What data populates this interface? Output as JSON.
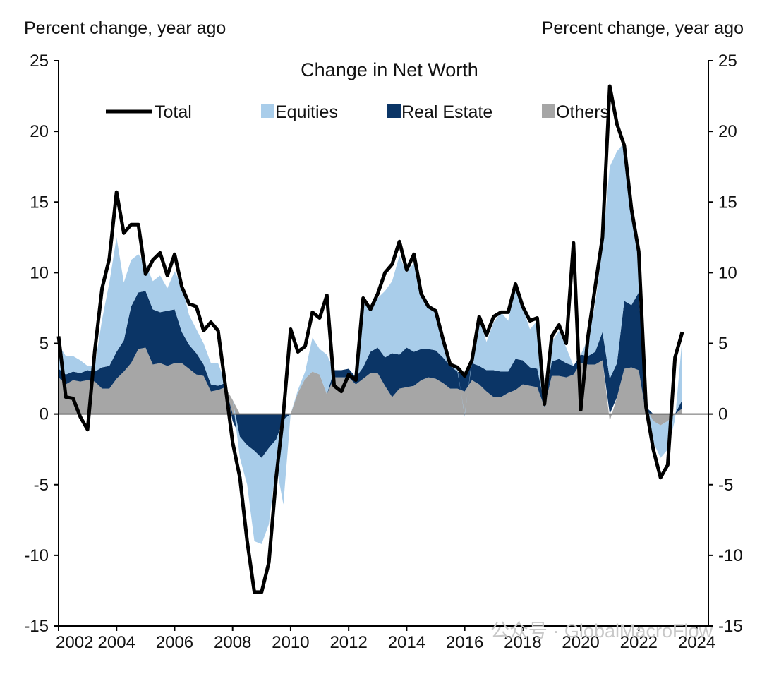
{
  "chart_data": {
    "type": "area",
    "title": "Change in Net Worth",
    "ylabel_left": "Percent change, year ago",
    "ylabel_right": "Percent change, year ago",
    "ylim": [
      -15,
      25
    ],
    "xlim": [
      2002,
      2024.4
    ],
    "y_ticks": [
      "25",
      "20",
      "15",
      "10",
      "5",
      "0",
      "-5",
      "-10",
      "-15"
    ],
    "x_ticks": [
      "2002",
      "2004",
      "2006",
      "2008",
      "2010",
      "2012",
      "2014",
      "2016",
      "2018",
      "2020",
      "2022",
      "2024"
    ],
    "legend": [
      "Total",
      "Equities",
      "Real Estate",
      "Others"
    ],
    "legend_position": "top",
    "colors": {
      "Total": "#000000",
      "Equities": "#a9cdea",
      "Real Estate": "#0b3566",
      "Others": "#a6a6a6"
    },
    "watermark": "公众号 · GlobalMacroFlow",
    "series": [
      {
        "name": "Total",
        "x": [
          2002.0,
          2002.25,
          2002.5,
          2002.75,
          2003.0,
          2003.25,
          2003.5,
          2003.75,
          2004.0,
          2004.25,
          2004.5,
          2004.75,
          2005.0,
          2005.25,
          2005.5,
          2005.75,
          2006.0,
          2006.25,
          2006.5,
          2006.75,
          2007.0,
          2007.25,
          2007.5,
          2007.75,
          2008.0,
          2008.25,
          2008.5,
          2008.75,
          2009.0,
          2009.25,
          2009.5,
          2009.75,
          2010.0,
          2010.25,
          2010.5,
          2010.75,
          2011.0,
          2011.25,
          2011.5,
          2011.75,
          2012.0,
          2012.25,
          2012.5,
          2012.75,
          2013.0,
          2013.25,
          2013.5,
          2013.75,
          2014.0,
          2014.25,
          2014.5,
          2014.75,
          2015.0,
          2015.25,
          2015.5,
          2015.75,
          2016.0,
          2016.25,
          2016.5,
          2016.75,
          2017.0,
          2017.25,
          2017.5,
          2017.75,
          2018.0,
          2018.25,
          2018.5,
          2018.75,
          2019.0,
          2019.25,
          2019.5,
          2019.75,
          2020.0,
          2020.25,
          2020.5,
          2020.75,
          2021.0,
          2021.25,
          2021.5,
          2021.75,
          2022.0,
          2022.25,
          2022.5,
          2022.75,
          2023.0,
          2023.25,
          2023.5
        ],
        "values": [
          5.5,
          1.2,
          1.1,
          -0.2,
          -1.1,
          4.5,
          8.9,
          11.0,
          15.7,
          12.8,
          13.4,
          13.4,
          9.9,
          10.9,
          11.4,
          9.8,
          11.3,
          9.0,
          7.8,
          7.6,
          5.9,
          6.5,
          5.9,
          2.0,
          -2.0,
          -4.5,
          -9.0,
          -12.6,
          -12.6,
          -10.5,
          -4.5,
          0.0,
          6.0,
          4.4,
          4.8,
          7.2,
          6.8,
          8.4,
          2.0,
          1.6,
          2.8,
          2.4,
          8.2,
          7.4,
          8.5,
          10.0,
          10.6,
          12.2,
          10.2,
          11.3,
          8.5,
          7.6,
          7.3,
          5.3,
          3.5,
          3.3,
          2.7,
          3.8,
          6.9,
          5.6,
          6.9,
          7.2,
          7.2,
          9.2,
          7.6,
          6.6,
          6.8,
          0.7,
          5.5,
          6.3,
          5.0,
          12.1,
          0.3,
          5.5,
          9.0,
          12.5,
          23.2,
          20.5,
          19.0,
          14.5,
          11.5,
          0.5,
          -2.5,
          -4.5,
          -3.6,
          4.0,
          5.8
        ]
      },
      {
        "name": "Equities",
        "x": [
          2002.0,
          2002.25,
          2002.5,
          2002.75,
          2003.0,
          2003.25,
          2003.5,
          2003.75,
          2004.0,
          2004.25,
          2004.5,
          2004.75,
          2005.0,
          2005.25,
          2005.5,
          2005.75,
          2006.0,
          2006.25,
          2006.5,
          2006.75,
          2007.0,
          2007.25,
          2007.5,
          2007.75,
          2008.0,
          2008.25,
          2008.5,
          2008.75,
          2009.0,
          2009.25,
          2009.5,
          2009.75,
          2010.0,
          2010.25,
          2010.5,
          2010.75,
          2011.0,
          2011.25,
          2011.5,
          2011.75,
          2012.0,
          2012.25,
          2012.5,
          2012.75,
          2013.0,
          2013.25,
          2013.5,
          2013.75,
          2014.0,
          2014.25,
          2014.5,
          2014.75,
          2015.0,
          2015.25,
          2015.5,
          2015.75,
          2016.0,
          2016.25,
          2016.5,
          2016.75,
          2017.0,
          2017.25,
          2017.5,
          2017.75,
          2018.0,
          2018.25,
          2018.5,
          2018.75,
          2019.0,
          2019.25,
          2019.5,
          2019.75,
          2020.0,
          2020.25,
          2020.5,
          2020.75,
          2021.0,
          2021.25,
          2021.5,
          2021.75,
          2022.0,
          2022.25,
          2022.5,
          2022.75,
          2023.0,
          2023.25,
          2023.5
        ],
        "values": [
          1.7,
          1.3,
          1.1,
          0.9,
          0.3,
          0.4,
          3.4,
          5.9,
          8.1,
          4.1,
          3.3,
          2.7,
          1.9,
          2.0,
          2.6,
          1.6,
          2.7,
          3.3,
          2.1,
          1.7,
          1.5,
          1.5,
          1.6,
          0.0,
          0.0,
          -1.5,
          -2.8,
          -6.4,
          -6.1,
          -5.4,
          -1.8,
          -6.0,
          0.0,
          0.2,
          0.5,
          2.4,
          1.8,
          2.8,
          0.0,
          0.0,
          0.0,
          0.0,
          5.0,
          3.0,
          3.5,
          4.7,
          5.1,
          7.0,
          5.3,
          6.3,
          3.8,
          3.0,
          2.8,
          1.3,
          0.1,
          0.2,
          -0.2,
          0.3,
          3.4,
          2.0,
          3.4,
          4.2,
          3.6,
          5.3,
          3.7,
          2.7,
          3.4,
          0.0,
          1.4,
          2.0,
          1.1,
          0.0,
          0.0,
          1.2,
          3.4,
          6.0,
          15.0,
          15.0,
          11.2,
          7.0,
          2.5,
          0.0,
          -1.5,
          -2.3,
          -2.0,
          -0.4,
          4.4
        ]
      },
      {
        "name": "Real Estate",
        "x": [
          2002.0,
          2002.25,
          2002.5,
          2002.75,
          2003.0,
          2003.25,
          2003.5,
          2003.75,
          2004.0,
          2004.25,
          2004.5,
          2004.75,
          2005.0,
          2005.25,
          2005.5,
          2005.75,
          2006.0,
          2006.25,
          2006.5,
          2006.75,
          2007.0,
          2007.25,
          2007.5,
          2007.75,
          2008.0,
          2008.25,
          2008.5,
          2008.75,
          2009.0,
          2009.25,
          2009.5,
          2009.75,
          2010.0,
          2010.25,
          2010.5,
          2010.75,
          2011.0,
          2011.25,
          2011.5,
          2011.75,
          2012.0,
          2012.25,
          2012.5,
          2012.75,
          2013.0,
          2013.25,
          2013.5,
          2013.75,
          2014.0,
          2014.25,
          2014.5,
          2014.75,
          2015.0,
          2015.25,
          2015.5,
          2015.75,
          2016.0,
          2016.25,
          2016.5,
          2016.75,
          2017.0,
          2017.25,
          2017.5,
          2017.75,
          2018.0,
          2018.25,
          2018.5,
          2018.75,
          2019.0,
          2019.25,
          2019.5,
          2019.75,
          2020.0,
          2020.25,
          2020.5,
          2020.75,
          2021.0,
          2021.25,
          2021.5,
          2021.75,
          2022.0,
          2022.25,
          2022.5,
          2022.75,
          2023.0,
          2023.25,
          2023.5
        ],
        "values": [
          0.6,
          0.7,
          0.6,
          0.6,
          0.7,
          0.7,
          1.5,
          1.6,
          1.9,
          2.2,
          4.0,
          4.0,
          4.0,
          3.9,
          3.6,
          3.9,
          3.8,
          2.2,
          1.7,
          1.5,
          0.8,
          0.5,
          0.3,
          0.3,
          -0.5,
          -1.6,
          -2.2,
          -2.6,
          -3.1,
          -2.4,
          -1.8,
          -0.4,
          0.0,
          0.0,
          0.0,
          0.0,
          0.0,
          0.0,
          0.5,
          0.5,
          0.6,
          0.5,
          0.8,
          1.5,
          1.8,
          2.0,
          3.1,
          2.4,
          2.8,
          2.4,
          2.2,
          2.0,
          2.0,
          1.8,
          1.6,
          1.2,
          1.2,
          1.2,
          1.3,
          1.5,
          1.9,
          1.8,
          1.5,
          2.2,
          1.7,
          1.3,
          1.3,
          0.2,
          1.0,
          1.2,
          1.0,
          0.6,
          0.6,
          0.6,
          0.9,
          2.0,
          2.5,
          2.4,
          4.8,
          4.4,
          5.5,
          0.5,
          0.0,
          0.0,
          0.0,
          0.0,
          0.6
        ]
      },
      {
        "name": "Others",
        "x": [
          2002.0,
          2002.25,
          2002.5,
          2002.75,
          2003.0,
          2003.25,
          2003.5,
          2003.75,
          2004.0,
          2004.25,
          2004.5,
          2004.75,
          2005.0,
          2005.25,
          2005.5,
          2005.75,
          2006.0,
          2006.25,
          2006.5,
          2006.75,
          2007.0,
          2007.25,
          2007.5,
          2007.75,
          2008.0,
          2008.25,
          2008.5,
          2008.75,
          2009.0,
          2009.25,
          2009.5,
          2009.75,
          2010.0,
          2010.25,
          2010.5,
          2010.75,
          2011.0,
          2011.25,
          2011.5,
          2011.75,
          2012.0,
          2012.25,
          2012.5,
          2012.75,
          2013.0,
          2013.25,
          2013.5,
          2013.75,
          2014.0,
          2014.25,
          2014.5,
          2014.75,
          2015.0,
          2015.25,
          2015.5,
          2015.75,
          2016.0,
          2016.25,
          2016.5,
          2016.75,
          2017.0,
          2017.25,
          2017.5,
          2017.75,
          2018.0,
          2018.25,
          2018.5,
          2018.75,
          2019.0,
          2019.25,
          2019.5,
          2019.75,
          2020.0,
          2020.25,
          2020.5,
          2020.75,
          2021.0,
          2021.25,
          2021.5,
          2021.75,
          2022.0,
          2022.25,
          2022.5,
          2022.75,
          2023.0,
          2023.25,
          2023.5
        ],
        "values": [
          2.6,
          2.1,
          2.4,
          2.3,
          2.4,
          2.3,
          1.8,
          1.8,
          2.5,
          3.0,
          3.6,
          4.6,
          4.7,
          3.5,
          3.6,
          3.4,
          3.6,
          3.6,
          3.2,
          2.8,
          2.7,
          1.6,
          1.7,
          1.9,
          1.0,
          0.0,
          0.0,
          0.0,
          0.0,
          0.0,
          0.0,
          0.0,
          0.0,
          1.5,
          2.5,
          3.0,
          2.8,
          1.4,
          2.6,
          2.6,
          2.6,
          2.1,
          2.5,
          2.9,
          2.9,
          2.0,
          1.2,
          1.8,
          1.9,
          2.0,
          2.4,
          2.6,
          2.5,
          2.2,
          1.8,
          1.8,
          1.6,
          2.4,
          2.1,
          1.6,
          1.2,
          1.2,
          1.5,
          1.7,
          2.1,
          2.0,
          1.9,
          0.5,
          2.7,
          2.7,
          2.6,
          2.8,
          3.6,
          3.5,
          3.5,
          3.8,
          -0.5,
          1.2,
          3.2,
          3.3,
          3.1,
          0.0,
          -0.5,
          -0.8,
          -0.5,
          0.0,
          0.4
        ]
      }
    ]
  }
}
